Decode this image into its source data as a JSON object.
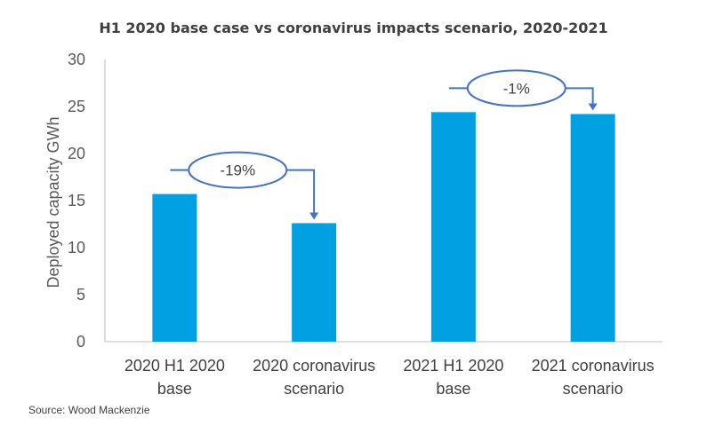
{
  "chart_data": {
    "type": "bar",
    "title": "H1 2020 base case vs coronavirus impacts scenario, 2020-2021",
    "ylabel": "Deployed capacity GWh",
    "xlabel": "",
    "ylim": [
      0,
      30
    ],
    "yticks": [
      0,
      5,
      10,
      15,
      20,
      25,
      30
    ],
    "categories": [
      [
        "2020 H1 2020",
        "base"
      ],
      [
        "2020 coronavirus",
        "scenario"
      ],
      [
        "2021 H1 2020",
        "base"
      ],
      [
        "2021 coronavirus",
        "scenario"
      ]
    ],
    "values": [
      15.7,
      12.6,
      24.4,
      24.2
    ],
    "bar_color": "#00A0E3",
    "grid": false,
    "legend": "none",
    "annotations": [
      {
        "text": "-19%",
        "from_category": 0,
        "to_category": 1
      },
      {
        "text": "-1%",
        "from_category": 2,
        "to_category": 3
      }
    ]
  },
  "source": "Source: Wood Mackenzie"
}
